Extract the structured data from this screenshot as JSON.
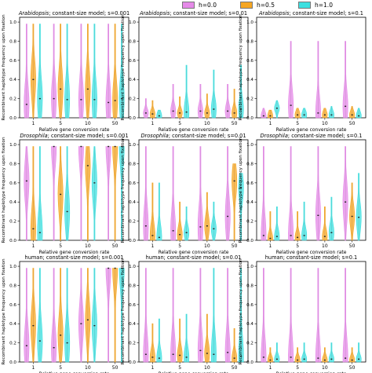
{
  "legend": [
    {
      "label": "h=0.0",
      "color": "#e58ae8"
    },
    {
      "label": "h=0.5",
      "color": "#f5a623"
    },
    {
      "label": "h=1.0",
      "color": "#3ee0e0"
    }
  ],
  "shared": {
    "ylabel": "Recombinant haplotype frequency upon fixation",
    "xlabel": "Relative gene conversion rate",
    "categories": [
      "1",
      "5",
      "10",
      "50"
    ],
    "yticks": [
      "0.0",
      "0.2",
      "0.4",
      "0.6",
      "0.8",
      "1.0"
    ]
  },
  "chart_data": [
    {
      "type": "violin",
      "species": "Arabidopsis",
      "title_rest": "; constant-size model; s=0.001",
      "categories": [
        "1",
        "5",
        "10",
        "50"
      ],
      "ylim": [
        0,
        1.05
      ],
      "series": [
        {
          "name": "h=0.0",
          "medians": [
            0.14,
            0.2,
            0.19,
            0.16
          ],
          "max": [
            0.98,
            0.98,
            0.98,
            0.98
          ]
        },
        {
          "name": "h=0.5",
          "medians": [
            0.4,
            0.3,
            0.3,
            0.18
          ],
          "max": [
            0.98,
            0.98,
            0.98,
            0.98
          ]
        },
        {
          "name": "h=1.0",
          "medians": [
            0.2,
            0.19,
            0.19,
            0.2
          ],
          "max": [
            0.98,
            0.98,
            0.98,
            0.98
          ]
        }
      ]
    },
    {
      "type": "violin",
      "species": "Arabidopsis",
      "title_rest": "; constant-size model; s=0.01",
      "categories": [
        "1",
        "5",
        "10",
        "50"
      ],
      "ylim": [
        0,
        1.05
      ],
      "series": [
        {
          "name": "h=0.0",
          "medians": [
            0.05,
            0.07,
            0.07,
            0.07
          ],
          "max": [
            0.2,
            0.35,
            0.35,
            0.35
          ]
        },
        {
          "name": "h=0.5",
          "medians": [
            0.04,
            0.05,
            0.05,
            0.05
          ],
          "max": [
            0.18,
            0.22,
            0.25,
            0.3
          ]
        },
        {
          "name": "h=1.0",
          "medians": [
            0.02,
            0.06,
            0.09,
            0.09
          ],
          "max": [
            0.08,
            0.55,
            0.5,
            0.55
          ]
        }
      ]
    },
    {
      "type": "violin",
      "species": "Arabidopsis",
      "title_rest": "; constant-size model; s=0.1",
      "categories": [
        "1",
        "5",
        "10",
        "50"
      ],
      "ylim": [
        0,
        1.05
      ],
      "series": [
        {
          "name": "h=0.0",
          "medians": [
            0.02,
            0.13,
            0.05,
            0.12
          ],
          "max": [
            0.1,
            0.8,
            0.8,
            0.8
          ]
        },
        {
          "name": "h=0.5",
          "medians": [
            0.02,
            0.03,
            0.03,
            0.03
          ],
          "max": [
            0.08,
            0.1,
            0.1,
            0.12
          ]
        },
        {
          "name": "h=1.0",
          "medians": [
            0.1,
            0.03,
            0.03,
            0.02
          ],
          "max": [
            0.18,
            0.1,
            0.12,
            0.1
          ]
        }
      ]
    },
    {
      "type": "violin",
      "species": "Drosophila",
      "title_rest": "; constant-size model; s=0.001",
      "categories": [
        "1",
        "5",
        "10",
        "50"
      ],
      "ylim": [
        0,
        1.05
      ],
      "series": [
        {
          "name": "h=0.0",
          "medians": [
            0.62,
            0.98,
            0.98,
            0.98
          ],
          "max": [
            0.98,
            0.98,
            0.98,
            0.98
          ]
        },
        {
          "name": "h=0.5",
          "medians": [
            0.12,
            0.48,
            0.78,
            0.98
          ],
          "max": [
            0.98,
            0.98,
            0.98,
            0.98
          ]
        },
        {
          "name": "h=1.0",
          "medians": [
            0.08,
            0.3,
            0.6,
            0.98
          ],
          "max": [
            0.98,
            0.98,
            0.98,
            0.98
          ]
        }
      ]
    },
    {
      "type": "violin",
      "species": "Drosophila",
      "title_rest": "; constant-size model; s=0.01",
      "categories": [
        "1",
        "5",
        "10",
        "50"
      ],
      "ylim": [
        0,
        1.05
      ],
      "series": [
        {
          "name": "h=0.0",
          "medians": [
            0.15,
            0.1,
            0.14,
            0.25
          ],
          "max": [
            0.98,
            0.98,
            0.98,
            0.98
          ]
        },
        {
          "name": "h=0.5",
          "medians": [
            0.05,
            0.06,
            0.15,
            0.62
          ],
          "max": [
            0.6,
            0.4,
            0.5,
            0.8
          ]
        },
        {
          "name": "h=1.0",
          "medians": [
            0.03,
            0.08,
            0.12,
            0.55
          ],
          "max": [
            0.6,
            0.35,
            0.4,
            0.7
          ]
        }
      ]
    },
    {
      "type": "violin",
      "species": "Drosophila",
      "title_rest": "; constant-size model; s=0.1",
      "categories": [
        "1",
        "5",
        "10",
        "50"
      ],
      "ylim": [
        0,
        1.05
      ],
      "series": [
        {
          "name": "h=0.0",
          "medians": [
            0.05,
            0.05,
            0.26,
            0.4
          ],
          "max": [
            0.98,
            0.98,
            0.98,
            0.98
          ]
        },
        {
          "name": "h=0.5",
          "medians": [
            0.02,
            0.03,
            0.04,
            0.25
          ],
          "max": [
            0.3,
            0.3,
            0.35,
            0.6
          ]
        },
        {
          "name": "h=1.0",
          "medians": [
            0.04,
            0.05,
            0.08,
            0.24
          ],
          "max": [
            0.35,
            0.4,
            0.45,
            0.7
          ]
        }
      ]
    },
    {
      "type": "violin",
      "species": "",
      "title_rest": "human; constant-size model; s=0.001",
      "categories": [
        "1",
        "5",
        "10",
        "50"
      ],
      "ylim": [
        0,
        1.05
      ],
      "series": [
        {
          "name": "h=0.0",
          "medians": [
            0.17,
            0.15,
            0.4,
            0.98
          ],
          "max": [
            0.98,
            0.98,
            0.98,
            0.98
          ]
        },
        {
          "name": "h=0.5",
          "medians": [
            0.38,
            0.28,
            0.44,
            0.98
          ],
          "max": [
            0.98,
            0.98,
            0.98,
            0.98
          ]
        },
        {
          "name": "h=1.0",
          "medians": [
            0.22,
            0.2,
            0.38,
            0.98
          ],
          "max": [
            0.98,
            0.98,
            0.98,
            0.98
          ]
        }
      ]
    },
    {
      "type": "violin",
      "species": "",
      "title_rest": "human; constant-size model; s=0.01",
      "categories": [
        "1",
        "5",
        "10",
        "50"
      ],
      "ylim": [
        0,
        1.05
      ],
      "series": [
        {
          "name": "h=0.0",
          "medians": [
            0.08,
            0.08,
            0.12,
            0.1
          ],
          "max": [
            0.98,
            0.98,
            0.98,
            0.98
          ]
        },
        {
          "name": "h=0.5",
          "medians": [
            0.05,
            0.07,
            0.09,
            0.04
          ],
          "max": [
            0.4,
            0.45,
            0.5,
            0.35
          ]
        },
        {
          "name": "h=1.0",
          "medians": [
            0.04,
            0.05,
            0.08,
            0.06
          ],
          "max": [
            0.45,
            0.5,
            0.98,
            0.98
          ]
        }
      ]
    },
    {
      "type": "violin",
      "species": "",
      "title_rest": "human; constant-size model; s=0.1",
      "categories": [
        "1",
        "5",
        "10",
        "50"
      ],
      "ylim": [
        0,
        1.05
      ],
      "series": [
        {
          "name": "h=0.0",
          "medians": [
            0.05,
            0.05,
            0.04,
            0.04
          ],
          "max": [
            0.98,
            0.98,
            0.98,
            0.98
          ]
        },
        {
          "name": "h=0.5",
          "medians": [
            0.02,
            0.02,
            0.02,
            0.02
          ],
          "max": [
            0.15,
            0.15,
            0.15,
            0.15
          ]
        },
        {
          "name": "h=1.0",
          "medians": [
            0.03,
            0.03,
            0.03,
            0.03
          ],
          "max": [
            0.2,
            0.2,
            0.2,
            0.2
          ]
        }
      ]
    }
  ]
}
